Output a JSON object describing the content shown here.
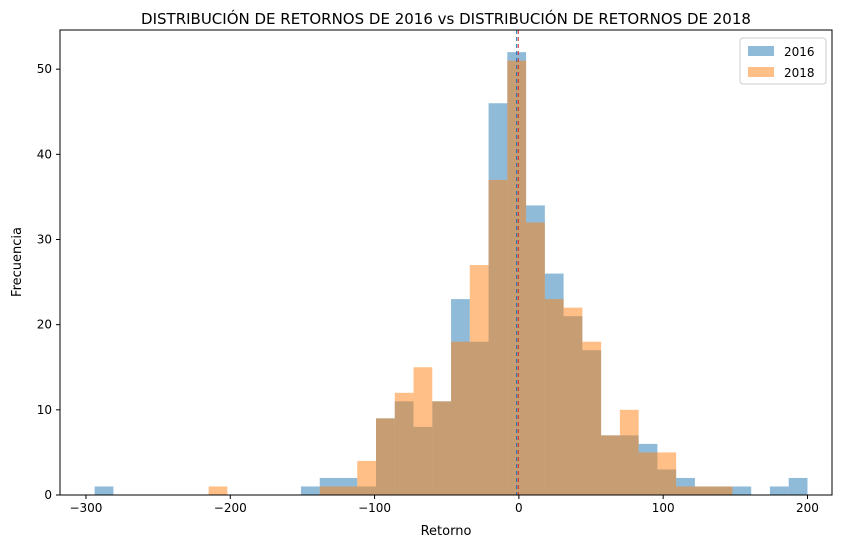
{
  "chart_data": {
    "type": "bar",
    "title": "DISTRIBUCIÓN DE RETORNOS DE 2016 vs DISTRIBUCIÓN DE RETORNOS DE 2018",
    "xlabel": "Retorno",
    "ylabel": "Frecuencia",
    "xlim": [
      -318,
      217
    ],
    "ylim": [
      0,
      54.6
    ],
    "x_ticks": [
      -300,
      -200,
      -100,
      0,
      100,
      200
    ],
    "y_ticks": [
      0,
      10,
      20,
      30,
      40,
      50
    ],
    "vline_x": -1,
    "legend_position": "top-right",
    "series": [
      {
        "name": "2016",
        "color": "#1f77b4",
        "opacity": 0.5,
        "bins": [
          {
            "x0": -294,
            "x1": -281,
            "count": 1
          },
          {
            "x0": -151,
            "x1": -138,
            "count": 1
          },
          {
            "x0": -138,
            "x1": -125,
            "count": 2
          },
          {
            "x0": -125,
            "x1": -112,
            "count": 2
          },
          {
            "x0": -112,
            "x1": -99,
            "count": 1
          },
          {
            "x0": -99,
            "x1": -86,
            "count": 9
          },
          {
            "x0": -86,
            "x1": -73,
            "count": 11
          },
          {
            "x0": -73,
            "x1": -60,
            "count": 8
          },
          {
            "x0": -60,
            "x1": -47,
            "count": 11
          },
          {
            "x0": -47,
            "x1": -34,
            "count": 23
          },
          {
            "x0": -34,
            "x1": -21,
            "count": 18
          },
          {
            "x0": -21,
            "x1": -8,
            "count": 46
          },
          {
            "x0": -8,
            "x1": 5,
            "count": 52
          },
          {
            "x0": 5,
            "x1": 18,
            "count": 34
          },
          {
            "x0": 18,
            "x1": 31,
            "count": 26
          },
          {
            "x0": 31,
            "x1": 44,
            "count": 21
          },
          {
            "x0": 44,
            "x1": 57,
            "count": 17
          },
          {
            "x0": 57,
            "x1": 70,
            "count": 7
          },
          {
            "x0": 70,
            "x1": 83,
            "count": 7
          },
          {
            "x0": 83,
            "x1": 96,
            "count": 6
          },
          {
            "x0": 96,
            "x1": 109,
            "count": 3
          },
          {
            "x0": 109,
            "x1": 122,
            "count": 2
          },
          {
            "x0": 122,
            "x1": 135,
            "count": 1
          },
          {
            "x0": 135,
            "x1": 148,
            "count": 1
          },
          {
            "x0": 148,
            "x1": 161,
            "count": 1
          },
          {
            "x0": 174,
            "x1": 187,
            "count": 1
          },
          {
            "x0": 187,
            "x1": 200,
            "count": 2
          }
        ]
      },
      {
        "name": "2018",
        "color": "#ff7f0e",
        "opacity": 0.5,
        "bins": [
          {
            "x0": -215,
            "x1": -202,
            "count": 1
          },
          {
            "x0": -138,
            "x1": -125,
            "count": 1
          },
          {
            "x0": -125,
            "x1": -112,
            "count": 1
          },
          {
            "x0": -112,
            "x1": -99,
            "count": 4
          },
          {
            "x0": -99,
            "x1": -86,
            "count": 9
          },
          {
            "x0": -86,
            "x1": -73,
            "count": 12
          },
          {
            "x0": -73,
            "x1": -60,
            "count": 15
          },
          {
            "x0": -60,
            "x1": -47,
            "count": 11
          },
          {
            "x0": -47,
            "x1": -34,
            "count": 18
          },
          {
            "x0": -34,
            "x1": -21,
            "count": 27
          },
          {
            "x0": -21,
            "x1": -8,
            "count": 37
          },
          {
            "x0": -8,
            "x1": 5,
            "count": 51
          },
          {
            "x0": 5,
            "x1": 18,
            "count": 32
          },
          {
            "x0": 18,
            "x1": 31,
            "count": 23
          },
          {
            "x0": 31,
            "x1": 44,
            "count": 22
          },
          {
            "x0": 44,
            "x1": 57,
            "count": 18
          },
          {
            "x0": 57,
            "x1": 70,
            "count": 7
          },
          {
            "x0": 70,
            "x1": 83,
            "count": 10
          },
          {
            "x0": 83,
            "x1": 96,
            "count": 5
          },
          {
            "x0": 96,
            "x1": 109,
            "count": 5
          },
          {
            "x0": 109,
            "x1": 122,
            "count": 1
          },
          {
            "x0": 122,
            "x1": 135,
            "count": 1
          },
          {
            "x0": 135,
            "x1": 148,
            "count": 1
          }
        ]
      }
    ]
  }
}
